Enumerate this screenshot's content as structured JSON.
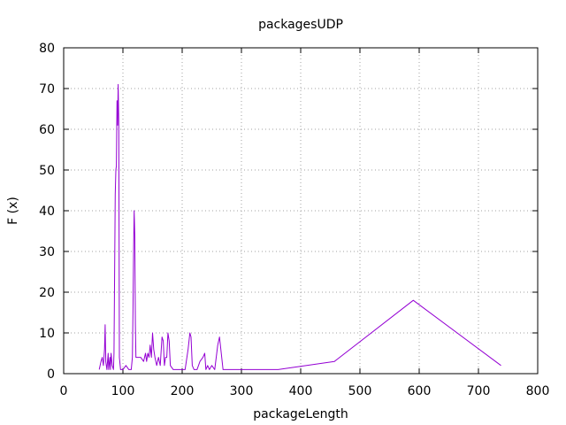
{
  "chart_data": {
    "type": "line",
    "title": "packagesUDP",
    "xlabel": "packageLength",
    "ylabel": "F (x)",
    "xlim": [
      0,
      800
    ],
    "ylim": [
      0,
      80
    ],
    "xticks": [
      0,
      100,
      200,
      300,
      400,
      500,
      600,
      700,
      800
    ],
    "yticks": [
      0,
      10,
      20,
      30,
      40,
      50,
      60,
      70,
      80
    ],
    "grid": true,
    "color": "#9400d3",
    "series": [
      {
        "x": [
          60,
          63,
          65,
          67,
          69,
          70,
          71,
          73,
          75,
          76,
          78,
          79,
          80,
          82,
          84,
          85,
          87,
          88,
          89,
          90,
          91,
          92,
          93,
          94,
          96,
          98,
          100,
          105,
          110,
          114,
          116,
          117,
          118,
          119,
          120,
          121,
          122,
          125,
          130,
          135,
          138,
          140,
          142,
          144,
          146,
          148,
          150,
          152,
          154,
          157,
          160,
          163,
          166,
          168,
          170,
          172,
          174,
          176,
          178,
          180,
          185,
          195,
          205,
          210,
          213,
          215,
          217,
          220,
          225,
          230,
          235,
          238,
          240,
          243,
          246,
          250,
          255,
          260,
          263,
          266,
          269,
          272,
          280,
          300,
          362,
          457,
          590,
          738
        ],
        "y": [
          1,
          3,
          4,
          2,
          6,
          12,
          3,
          1,
          5,
          1,
          4,
          1,
          5,
          2,
          1,
          5,
          44,
          50,
          51,
          67,
          61,
          71,
          62,
          4,
          1,
          1,
          1,
          2,
          1,
          1,
          4,
          16,
          31,
          40,
          34,
          12,
          4,
          4,
          4,
          3,
          5,
          3,
          5,
          4,
          7,
          4,
          10,
          6,
          4,
          2,
          4,
          2,
          9,
          8,
          2,
          4,
          4,
          10,
          8,
          2,
          1,
          1,
          1,
          6,
          10,
          9,
          2,
          1,
          1,
          3,
          4,
          5,
          1,
          2,
          1,
          2,
          1,
          7,
          9,
          5,
          1,
          1,
          1,
          1,
          1,
          3,
          18,
          2
        ]
      }
    ]
  }
}
